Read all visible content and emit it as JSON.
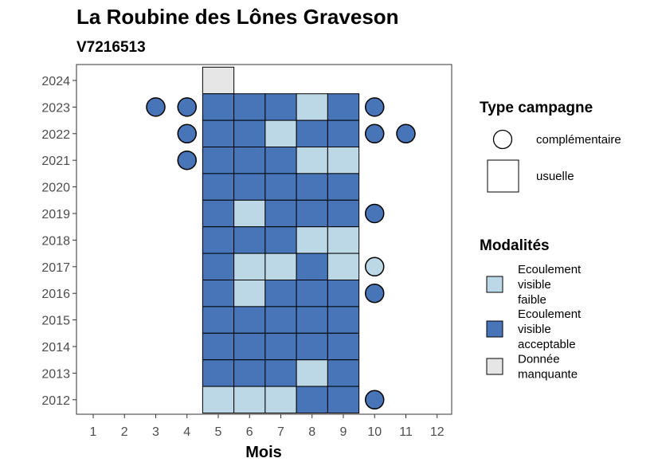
{
  "chart_data": {
    "type": "heatmap",
    "title": "La Roubine des Lônes Graveson",
    "subtitle": "V7216513",
    "xlabel": "Mois",
    "ylabel": "",
    "x_ticks": [
      "1",
      "2",
      "3",
      "4",
      "5",
      "6",
      "7",
      "8",
      "9",
      "10",
      "11",
      "12"
    ],
    "y_ticks": [
      "2024",
      "2023",
      "2022",
      "2021",
      "2020",
      "2019",
      "2018",
      "2017",
      "2016",
      "2015",
      "2014",
      "2013",
      "2012"
    ],
    "xlim": [
      0.5,
      12.5
    ],
    "ylim": [
      2011.5,
      2024.5
    ],
    "grid": false,
    "legend_placement": "right",
    "colors": {
      "faible": "#bcd7e6",
      "acceptable": "#4775b8",
      "manquante": "#e6e6e6"
    },
    "legend_shape": {
      "title": "Type campagne",
      "items": [
        {
          "label": "complémentaire",
          "shape": "circle"
        },
        {
          "label": "usuelle",
          "shape": "square"
        }
      ]
    },
    "legend_fill": {
      "title": "Modalités",
      "items": [
        {
          "key": "faible",
          "lines": [
            "Ecoulement",
            "visible",
            "faible"
          ]
        },
        {
          "key": "acceptable",
          "lines": [
            "Ecoulement",
            "visible",
            "acceptable"
          ]
        },
        {
          "key": "manquante",
          "lines": [
            "Donnée",
            "manquante"
          ]
        }
      ]
    },
    "usuelle": [
      {
        "year": 2024,
        "month": 5,
        "mod": "manquante"
      },
      {
        "year": 2023,
        "month": 5,
        "mod": "acceptable"
      },
      {
        "year": 2023,
        "month": 6,
        "mod": "acceptable"
      },
      {
        "year": 2023,
        "month": 7,
        "mod": "acceptable"
      },
      {
        "year": 2023,
        "month": 8,
        "mod": "faible"
      },
      {
        "year": 2023,
        "month": 9,
        "mod": "acceptable"
      },
      {
        "year": 2022,
        "month": 5,
        "mod": "acceptable"
      },
      {
        "year": 2022,
        "month": 6,
        "mod": "acceptable"
      },
      {
        "year": 2022,
        "month": 7,
        "mod": "faible"
      },
      {
        "year": 2022,
        "month": 8,
        "mod": "acceptable"
      },
      {
        "year": 2022,
        "month": 9,
        "mod": "acceptable"
      },
      {
        "year": 2021,
        "month": 5,
        "mod": "acceptable"
      },
      {
        "year": 2021,
        "month": 6,
        "mod": "acceptable"
      },
      {
        "year": 2021,
        "month": 7,
        "mod": "acceptable"
      },
      {
        "year": 2021,
        "month": 8,
        "mod": "faible"
      },
      {
        "year": 2021,
        "month": 9,
        "mod": "faible"
      },
      {
        "year": 2020,
        "month": 5,
        "mod": "acceptable"
      },
      {
        "year": 2020,
        "month": 6,
        "mod": "acceptable"
      },
      {
        "year": 2020,
        "month": 7,
        "mod": "acceptable"
      },
      {
        "year": 2020,
        "month": 8,
        "mod": "acceptable"
      },
      {
        "year": 2020,
        "month": 9,
        "mod": "acceptable"
      },
      {
        "year": 2019,
        "month": 5,
        "mod": "acceptable"
      },
      {
        "year": 2019,
        "month": 6,
        "mod": "faible"
      },
      {
        "year": 2019,
        "month": 7,
        "mod": "acceptable"
      },
      {
        "year": 2019,
        "month": 8,
        "mod": "acceptable"
      },
      {
        "year": 2019,
        "month": 9,
        "mod": "acceptable"
      },
      {
        "year": 2018,
        "month": 5,
        "mod": "acceptable"
      },
      {
        "year": 2018,
        "month": 6,
        "mod": "acceptable"
      },
      {
        "year": 2018,
        "month": 7,
        "mod": "acceptable"
      },
      {
        "year": 2018,
        "month": 8,
        "mod": "faible"
      },
      {
        "year": 2018,
        "month": 9,
        "mod": "faible"
      },
      {
        "year": 2017,
        "month": 5,
        "mod": "acceptable"
      },
      {
        "year": 2017,
        "month": 6,
        "mod": "faible"
      },
      {
        "year": 2017,
        "month": 7,
        "mod": "faible"
      },
      {
        "year": 2017,
        "month": 8,
        "mod": "acceptable"
      },
      {
        "year": 2017,
        "month": 9,
        "mod": "faible"
      },
      {
        "year": 2016,
        "month": 5,
        "mod": "acceptable"
      },
      {
        "year": 2016,
        "month": 6,
        "mod": "faible"
      },
      {
        "year": 2016,
        "month": 7,
        "mod": "acceptable"
      },
      {
        "year": 2016,
        "month": 8,
        "mod": "acceptable"
      },
      {
        "year": 2016,
        "month": 9,
        "mod": "acceptable"
      },
      {
        "year": 2015,
        "month": 5,
        "mod": "acceptable"
      },
      {
        "year": 2015,
        "month": 6,
        "mod": "acceptable"
      },
      {
        "year": 2015,
        "month": 7,
        "mod": "acceptable"
      },
      {
        "year": 2015,
        "month": 8,
        "mod": "acceptable"
      },
      {
        "year": 2015,
        "month": 9,
        "mod": "acceptable"
      },
      {
        "year": 2014,
        "month": 5,
        "mod": "acceptable"
      },
      {
        "year": 2014,
        "month": 6,
        "mod": "acceptable"
      },
      {
        "year": 2014,
        "month": 7,
        "mod": "acceptable"
      },
      {
        "year": 2014,
        "month": 8,
        "mod": "acceptable"
      },
      {
        "year": 2014,
        "month": 9,
        "mod": "acceptable"
      },
      {
        "year": 2013,
        "month": 5,
        "mod": "acceptable"
      },
      {
        "year": 2013,
        "month": 6,
        "mod": "acceptable"
      },
      {
        "year": 2013,
        "month": 7,
        "mod": "acceptable"
      },
      {
        "year": 2013,
        "month": 8,
        "mod": "faible"
      },
      {
        "year": 2013,
        "month": 9,
        "mod": "acceptable"
      },
      {
        "year": 2012,
        "month": 5,
        "mod": "faible"
      },
      {
        "year": 2012,
        "month": 6,
        "mod": "faible"
      },
      {
        "year": 2012,
        "month": 7,
        "mod": "faible"
      },
      {
        "year": 2012,
        "month": 8,
        "mod": "acceptable"
      },
      {
        "year": 2012,
        "month": 9,
        "mod": "acceptable"
      }
    ],
    "complementaire": [
      {
        "year": 2023,
        "month": 3,
        "mod": "acceptable"
      },
      {
        "year": 2023,
        "month": 4,
        "mod": "acceptable"
      },
      {
        "year": 2023,
        "month": 10,
        "mod": "acceptable"
      },
      {
        "year": 2022,
        "month": 4,
        "mod": "acceptable"
      },
      {
        "year": 2022,
        "month": 10,
        "mod": "acceptable"
      },
      {
        "year": 2022,
        "month": 11,
        "mod": "acceptable"
      },
      {
        "year": 2021,
        "month": 4,
        "mod": "acceptable"
      },
      {
        "year": 2019,
        "month": 10,
        "mod": "acceptable"
      },
      {
        "year": 2017,
        "month": 10,
        "mod": "faible"
      },
      {
        "year": 2016,
        "month": 10,
        "mod": "acceptable"
      },
      {
        "year": 2012,
        "month": 10,
        "mod": "acceptable"
      }
    ]
  }
}
